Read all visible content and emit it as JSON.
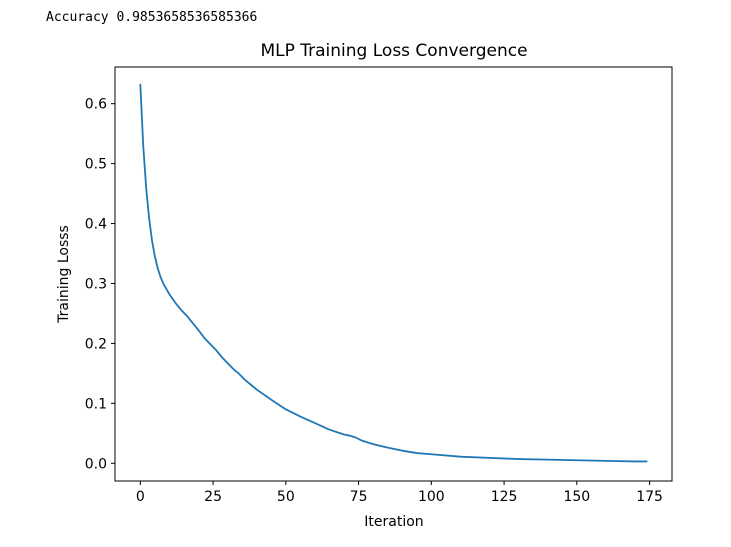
{
  "cell_output": "Accuracy 0.9853658536585366",
  "chart_data": {
    "type": "line",
    "title": "MLP Training Loss Convergence",
    "xlabel": "Iteration",
    "ylabel": "Training Losss",
    "xlim": [
      -8.7,
      182.7
    ],
    "ylim": [
      -0.0296,
      0.6612
    ],
    "xticks": [
      0,
      25,
      50,
      75,
      100,
      125,
      150,
      175
    ],
    "yticks": [
      0.0,
      0.1,
      0.2,
      0.3,
      0.4,
      0.5,
      0.6
    ],
    "ytick_labels": [
      "0.0",
      "0.1",
      "0.2",
      "0.3",
      "0.4",
      "0.5",
      "0.6"
    ],
    "grid": false,
    "series": [
      {
        "color": "#1f77b4",
        "x": [
          0,
          1,
          2,
          3,
          4,
          5,
          6,
          7,
          8,
          10,
          12,
          14,
          16,
          18,
          20,
          22,
          24,
          26,
          28,
          30,
          32,
          34,
          36,
          38,
          40,
          45,
          50,
          55,
          60,
          65,
          70,
          72,
          74,
          76,
          80,
          85,
          90,
          95,
          100,
          110,
          120,
          130,
          140,
          150,
          160,
          170,
          174
        ],
        "y": [
          0.632,
          0.53,
          0.46,
          0.41,
          0.372,
          0.345,
          0.325,
          0.31,
          0.299,
          0.282,
          0.268,
          0.256,
          0.246,
          0.234,
          0.222,
          0.209,
          0.199,
          0.189,
          0.177,
          0.167,
          0.157,
          0.149,
          0.139,
          0.131,
          0.123,
          0.106,
          0.09,
          0.078,
          0.067,
          0.056,
          0.048,
          0.046,
          0.043,
          0.038,
          0.032,
          0.026,
          0.021,
          0.017,
          0.015,
          0.011,
          0.009,
          0.007,
          0.006,
          0.005,
          0.004,
          0.003,
          0.003
        ]
      }
    ]
  }
}
